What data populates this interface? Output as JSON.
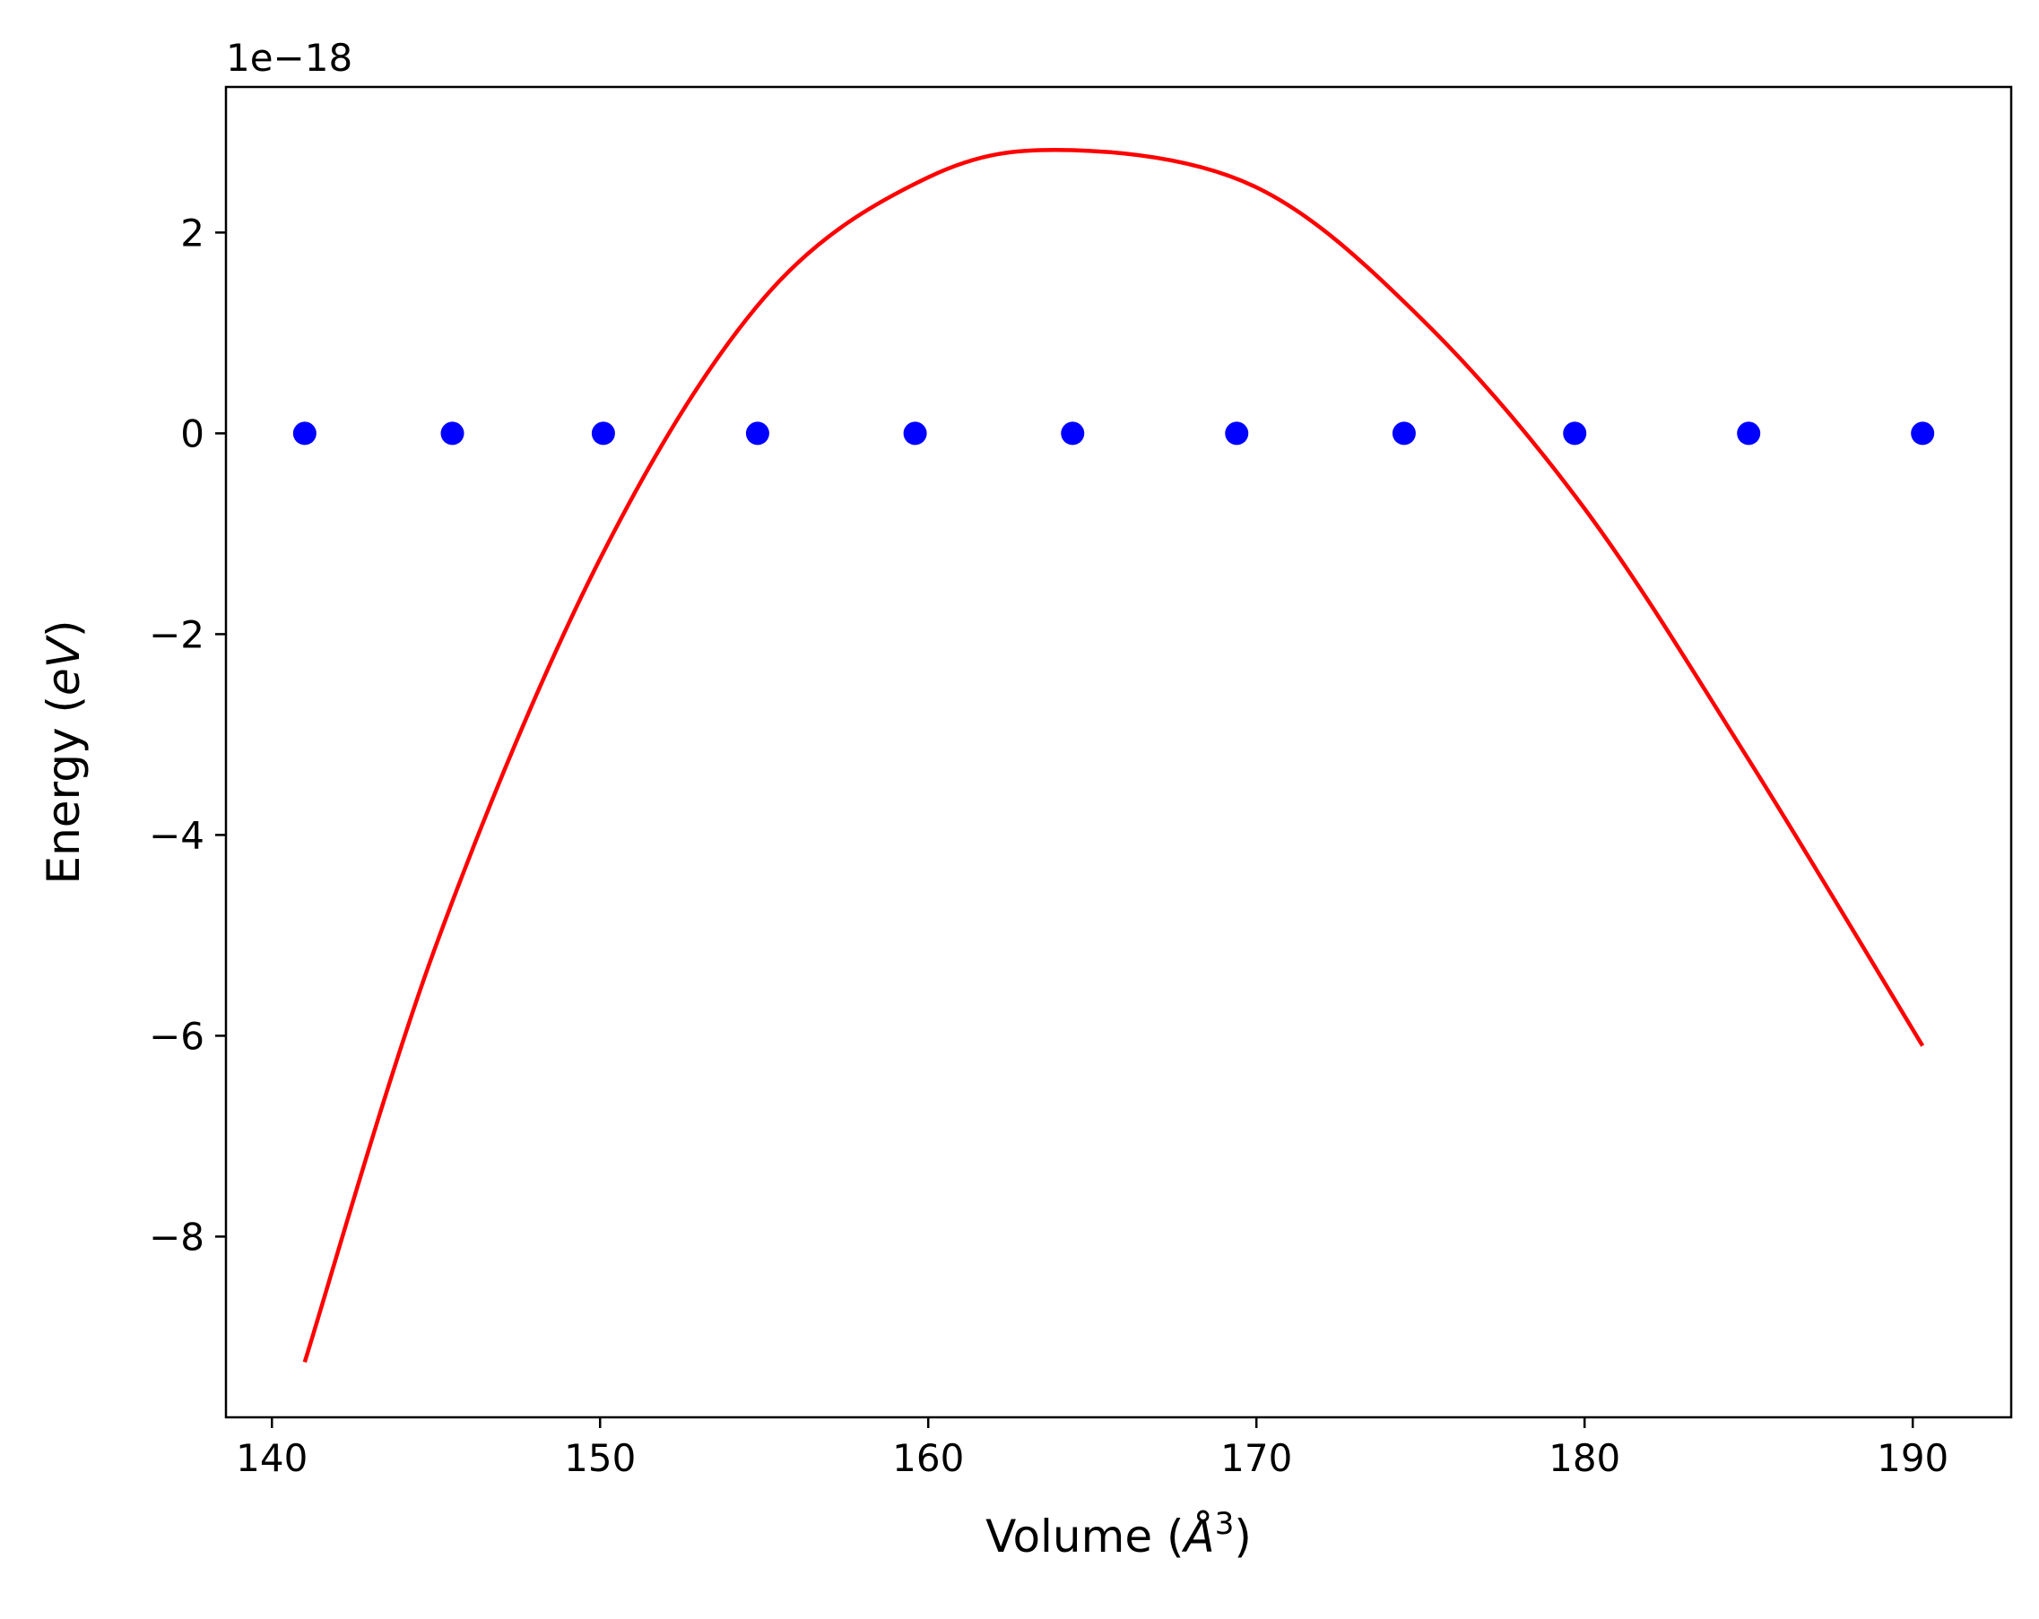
{
  "chart_data": {
    "type": "scatter",
    "title": "",
    "xlabel": "Volume",
    "xlabel_unit_symbol": "Å",
    "xlabel_unit_exponent": "3",
    "ylabel": "Energy",
    "ylabel_unit": "eV",
    "y_offset_text": "1e−18",
    "xlim": [
      138.6,
      193.0
    ],
    "ylim": [
      -9.8,
      3.45
    ],
    "x_ticks": [
      140,
      150,
      160,
      170,
      180,
      190
    ],
    "x_tick_labels": [
      "140",
      "150",
      "160",
      "170",
      "180",
      "190"
    ],
    "y_ticks": [
      -8,
      -6,
      -4,
      -2,
      0,
      2
    ],
    "y_tick_labels": [
      "−8",
      "−6",
      "−4",
      "−2",
      "0",
      "2"
    ],
    "grid": false,
    "series": [
      {
        "kind": "scatter",
        "color": "#0000ff",
        "x": [
          141.0,
          145.5,
          150.1,
          154.8,
          159.6,
          164.4,
          169.4,
          174.5,
          179.7,
          185.0,
          190.3
        ],
        "y": [
          0,
          0,
          0,
          0,
          0,
          0,
          0,
          0,
          0,
          0,
          0
        ]
      },
      {
        "kind": "line",
        "color": "#ff0000",
        "x": [
          141.0,
          145.0,
          150.0,
          155.0,
          160.0,
          164.4,
          170.0,
          175.0,
          180.0,
          185.0,
          190.3
        ],
        "y": [
          -9.25,
          -5.1,
          -1.25,
          1.35,
          2.55,
          2.82,
          2.45,
          1.15,
          -0.75,
          -3.25,
          -6.1
        ]
      }
    ]
  }
}
